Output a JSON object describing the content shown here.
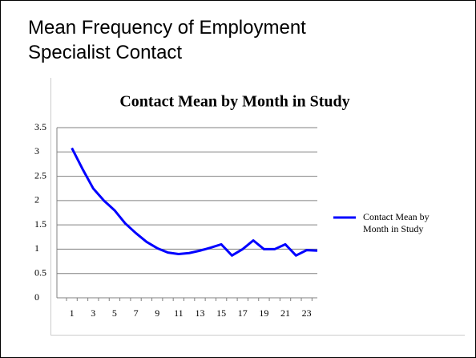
{
  "slide_title": "Mean Frequency of Employment Specialist Contact",
  "chart_data": {
    "type": "line",
    "title": "Contact Mean by Month in Study",
    "categories": [
      "1",
      null,
      "3",
      null,
      "5",
      null,
      "7",
      null,
      "9",
      null,
      "11",
      null,
      "13",
      null,
      "15",
      null,
      "17",
      null,
      "19",
      null,
      "21",
      null,
      "23",
      null
    ],
    "series": [
      {
        "name": "Contact Mean by Month in Study",
        "color": "#0000ff",
        "values": [
          3.08,
          2.65,
          2.25,
          2.0,
          1.8,
          1.53,
          1.33,
          1.15,
          1.02,
          0.93,
          0.9,
          0.92,
          0.97,
          1.03,
          1.1,
          0.87,
          1.0,
          1.18,
          1.0,
          1.0,
          1.1,
          0.87,
          0.98,
          0.97
        ]
      }
    ],
    "ylim": [
      0,
      3.5
    ],
    "yticks": [
      0,
      0.5,
      1,
      1.5,
      2,
      2.5,
      3,
      3.5
    ],
    "grid": true,
    "legend": "right"
  }
}
